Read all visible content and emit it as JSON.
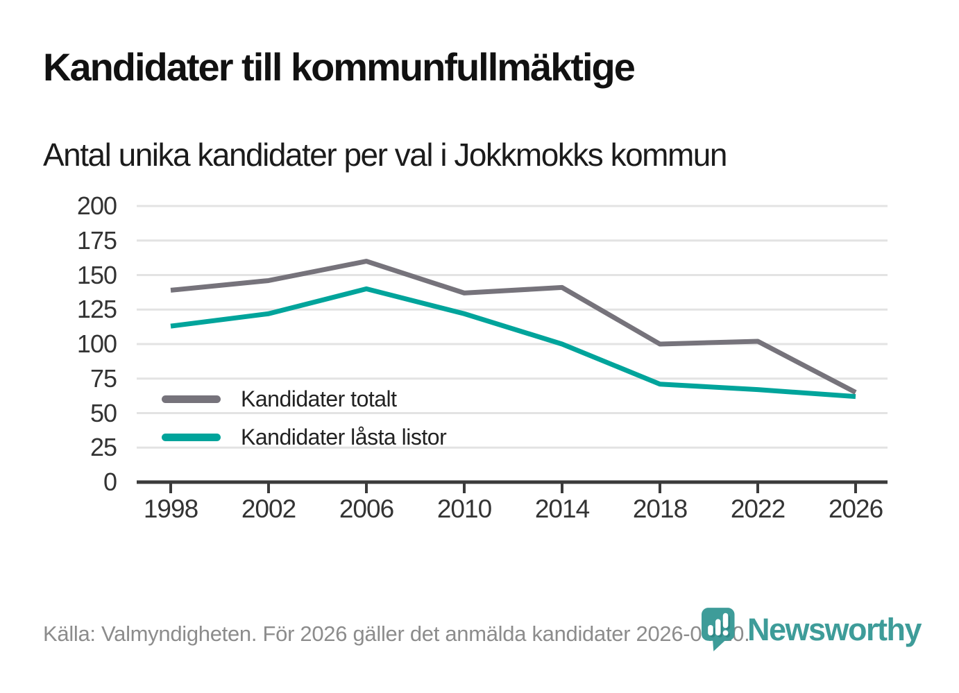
{
  "header": {
    "title": "Kandidater till kommunfullmäktige",
    "subtitle": "Antal unika kandidater per val i Jokkmokks kommun"
  },
  "chart_data": {
    "type": "line",
    "title": "Kandidater till kommunfullmäktige",
    "subtitle": "Antal unika kandidater per val i Jokkmokks kommun",
    "x": [
      1998,
      2002,
      2006,
      2010,
      2014,
      2018,
      2022,
      2026
    ],
    "series": [
      {
        "name": "Kandidater totalt",
        "color": "#76737B",
        "values": [
          139,
          146,
          160,
          137,
          141,
          100,
          102,
          65
        ]
      },
      {
        "name": "Kandidater låsta listor",
        "color": "#00A49B",
        "values": [
          113,
          122,
          140,
          122,
          100,
          71,
          67,
          62
        ]
      }
    ],
    "xlabel": "",
    "ylabel": "",
    "ylim": [
      0,
      200
    ],
    "yticks": [
      0,
      25,
      50,
      75,
      100,
      125,
      150,
      175,
      200
    ],
    "grid": "horizontal",
    "legend_position": "inside-bottom-left",
    "axis_color": "#3B3B3B",
    "gridline_color": "#E3E3E3"
  },
  "footer": {
    "source_text": "Källa: Valmyndigheten. För 2026 gäller det anmälda kandidater 2026-04-10.",
    "brand_name": "Newsworthy",
    "brand_color": "#3E9C99",
    "brand_icon": "newsworthy-pin-barchart-icon"
  }
}
